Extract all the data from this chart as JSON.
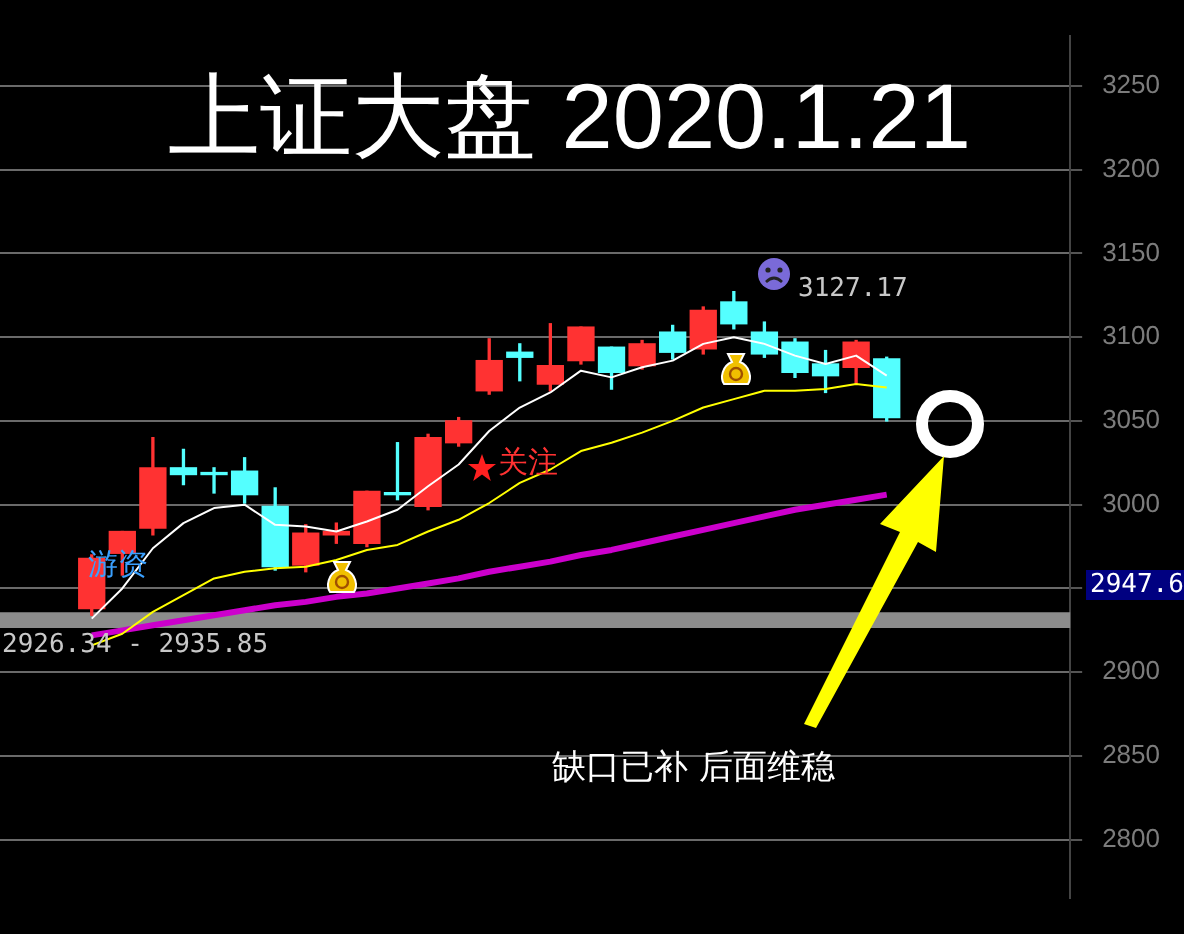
{
  "chart_data": {
    "type": "candlestick",
    "title": "上证大盘 2020.1.21",
    "categories": [
      null,
      null,
      null,
      null,
      null,
      null,
      null,
      null,
      null,
      null,
      null,
      null,
      null,
      null,
      null,
      null,
      null,
      null,
      null,
      null,
      null,
      null,
      null,
      null,
      null,
      null,
      null
    ],
    "ohlc": [
      [
        2938,
        2970,
        2934,
        2968
      ],
      [
        2971,
        2984,
        2958,
        2984
      ],
      [
        2986,
        3040,
        2982,
        3022
      ],
      [
        3022,
        3033,
        3012,
        3018
      ],
      [
        3019,
        3022,
        3007,
        3018
      ],
      [
        3020,
        3028,
        3001,
        3006
      ],
      [
        2999,
        3010,
        2961,
        2963
      ],
      [
        2964,
        2988,
        2960,
        2983
      ],
      [
        2982,
        2989,
        2977,
        2984
      ],
      [
        2977,
        3008,
        2975,
        3008
      ],
      [
        3007,
        3037,
        3003,
        3006
      ],
      [
        2999,
        3042,
        2997,
        3040
      ],
      [
        3037,
        3052,
        3035,
        3050
      ],
      [
        3068,
        3099,
        3066,
        3086
      ],
      [
        3091,
        3096,
        3074,
        3088
      ],
      [
        3072,
        3108,
        3068,
        3083
      ],
      [
        3086,
        3106,
        3084,
        3106
      ],
      [
        3094,
        3094,
        3069,
        3079
      ],
      [
        3083,
        3098,
        3081,
        3096
      ],
      [
        3103,
        3107,
        3087,
        3091
      ],
      [
        3093,
        3118,
        3090,
        3116
      ],
      [
        3121,
        3127.17,
        3105,
        3108
      ],
      [
        3103,
        3109,
        3088,
        3090
      ],
      [
        3097,
        3099,
        3076,
        3079
      ],
      [
        3084,
        3092,
        3067,
        3077
      ],
      [
        3082,
        3098,
        3072,
        3097
      ],
      [
        3087,
        3088,
        3050,
        3052
      ]
    ],
    "colors": [
      "#ff3232",
      "#ff3232",
      "#ff3232",
      "#54ffff",
      "#54ffff",
      "#54ffff",
      "#54ffff",
      "#ff3232",
      "#ff3232",
      "#ff3232",
      "#54ffff",
      "#ff3232",
      "#ff3232",
      "#ff3232",
      "#54ffff",
      "#ff3232",
      "#ff3232",
      "#54ffff",
      "#ff3232",
      "#54ffff",
      "#ff3232",
      "#54ffff",
      "#54ffff",
      "#54ffff",
      "#54ffff",
      "#ff3232",
      "#54ffff"
    ],
    "series": [
      {
        "type": "line",
        "color": "#ffffff",
        "values": [
          2932,
          2950,
          2974,
          2989,
          2998,
          3000,
          2988,
          2987,
          2984,
          2990,
          2997,
          3011,
          3024,
          3044,
          3058,
          3067,
          3080,
          3076,
          3082,
          3086,
          3096,
          3100,
          3096,
          3089,
          3084,
          3089,
          3077
        ]
      },
      {
        "type": "line",
        "color": "#ffff00",
        "values": [
          2916,
          2923,
          2936,
          2946,
          2956,
          2960,
          2962,
          2963,
          2967,
          2973,
          2976,
          2984,
          2991,
          3001,
          3013,
          3021,
          3032,
          3037,
          3043,
          3050,
          3058,
          3063,
          3068,
          3068,
          3069,
          3072,
          3070
        ]
      },
      {
        "type": "line",
        "color": "#cc00cc",
        "values": [
          2922,
          2925,
          2928,
          2931,
          2934,
          2937,
          2940,
          2942,
          2945,
          2947,
          2950,
          2953,
          2956,
          2960,
          2963,
          2966,
          2970,
          2973,
          2977,
          2981,
          2985,
          2989,
          2993,
          2997,
          3000,
          3003,
          3006
        ]
      }
    ],
    "ylim": [
      2765,
      3280
    ],
    "yticks": [
      2800,
      2850,
      2900,
      {
        "value": 2950,
        "label": null
      },
      3000,
      3050,
      3100,
      3150,
      3200,
      3250
    ],
    "grid": "y",
    "legend": false,
    "tick_labels": "y",
    "marker": "none",
    "bands": [
      {
        "axis": "y",
        "from": 2926.34,
        "to": 2935.85,
        "label": "2926.34 - 2935.85",
        "color": "#8c8c8c"
      }
    ],
    "annotations": [
      "3127.17",
      "游资",
      "关注",
      "缺口已补 后面维稳",
      "2947.6"
    ]
  }
}
